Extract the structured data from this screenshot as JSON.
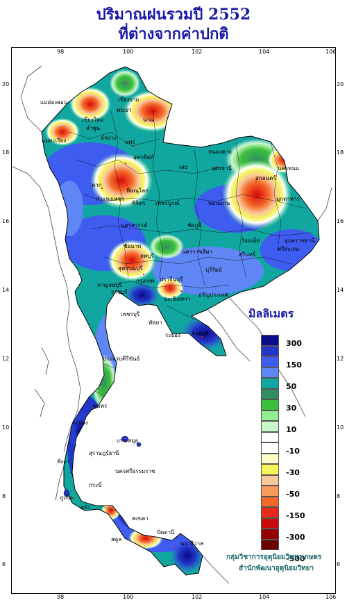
{
  "title_line1": "ปริมาณฝนรวมปี  2552",
  "title_line2": "ที่ต่างจากค่าปกติ",
  "unit": "มิลลิเมตร",
  "credit_line1": "กลุ่มวิชาการอุตุนิยมวิทยาเกษตร",
  "credit_line2": "สำนักพัฒนาอุตุนิยมวิทยา",
  "lon_ticks": [
    "98",
    "100",
    "102",
    "104",
    "106"
  ],
  "lat_ticks": [
    "20",
    "18",
    "16",
    "14",
    "12",
    "10",
    "8",
    "6"
  ],
  "legend_labels": [
    "300",
    "150",
    "50",
    "30",
    "10",
    "-10",
    "-30",
    "-50",
    "-150",
    "-300",
    "-500"
  ],
  "legend_colors": [
    "#0a0a8a",
    "#2436c8",
    "#3e5cf0",
    "#5f86f5",
    "#11a7a0",
    "#2f8f5f",
    "#3cbf3c",
    "#90f090",
    "#c8f8c8",
    "#ffffff",
    "#ffffff",
    "#ffffc8",
    "#f5f55a",
    "#f8c89a",
    "#f89a5a",
    "#f56a2a",
    "#e82a1a",
    "#c80a0a",
    "#960000",
    "#6a0000"
  ],
  "places": {
    "chiangrai": "เชียงราย",
    "maehongson": "แม่ฮ่องสอน",
    "chiangmai": "เชียงใหม่",
    "lamphun": "ลำพูน",
    "phayao": "พะเยา",
    "nan": "น่าน",
    "lampang": "ลำปาง",
    "phrae": "แพร่",
    "maesariang": "แม่สะเรียง",
    "uttaradit": "อุตรดิตถ์",
    "nongkhai": "หนองคาย",
    "loei": "เลย",
    "udonthani": "อุดรธานี",
    "sakonnakhon": "สกลนคร",
    "nakhonphanom": "นครพนม",
    "mukdahan": "มุกดาหาร",
    "tak": "ตาก",
    "phitsanulok": "พิษณุโลก",
    "kamphaengphet": "กำแพงเพชร",
    "phichit": "พิจิตร",
    "phetchabun": "เพชรบูรณ์",
    "khonkaen": "ขอนแก่น",
    "nakhonsawan": "นครสวรรค์",
    "chaiyaphum": "ชัยภูมิ",
    "roiet": "ร้อยเอ็ด",
    "ubonratchathani": "อุบลราชธานี",
    "surin": "สุรินทร์",
    "sisaket": "ศรีสะเกษ",
    "chainat": "ชัยนาท",
    "lopburi": "ลพบุรี",
    "nakhonratchasima": "นครราชสีมา",
    "suphanburi": "สุพรรณบุรี",
    "kanchanaburi": "กาญจนบุรี",
    "bangkok": "กรุงเทพ",
    "prachinburi": "ปราจีนบุรี",
    "buriram": "บุรีรัมย์",
    "ratchaburi": "ราชบุรี",
    "chachoengsao": "ฉะเชิงเทรา",
    "aranyaprathet": "อรัญประเทศ",
    "phetchaburi": "เพชรบุรี",
    "pattaya": "พัทยา",
    "rayong": "ระยอง",
    "chanthaburi": "จันทบุรี",
    "prachuap": "ประจวบคีรีขันธ์",
    "chumphon": "ชุมพร",
    "ranong": "ระนอง",
    "kosamui": "เกาะสมุย",
    "suratthani": "สุราษฎร์ธานี",
    "phangnga": "พังงา",
    "phuket": "ภูเก็ต",
    "nakhonsithammarat": "นครศรีธรรมราช",
    "krabi": "กระบี่",
    "trang": "ตรัง",
    "satun": "สตูล",
    "songkhla": "สงขลา",
    "pattani": "ปัตตานี",
    "narathiwat": "นราธิวาส"
  }
}
